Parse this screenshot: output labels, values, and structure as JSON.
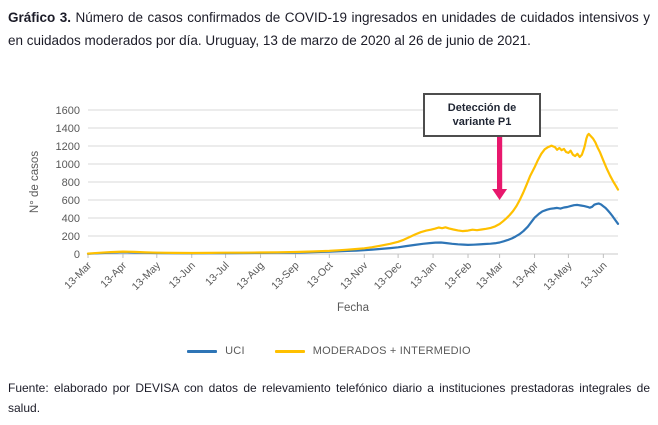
{
  "title": {
    "label": "Gráfico 3.",
    "text": "Número de casos confirmados de COVID-19 ingresados en unidades de cuidados intensivos y en cuidados moderados por día. Uruguay, 13 de marzo de 2020 al 26 de junio de 2021."
  },
  "source": "Fuente: elaborado por DEVISA con datos de relevamiento telefónico diario a instituciones prestadoras integrales de salud.",
  "colors": {
    "uci_blue": "#2E75B6",
    "moderados_gold": "#FFC000",
    "arrow_magenta": "#E8186D",
    "grid_gray": "#D9D9D9",
    "axis_text_gray": "#595959"
  },
  "chart_data": {
    "type": "line",
    "xlabel": "Fecha",
    "ylabel": "N° de casos",
    "x_unit": "days since 13-Mar-2020 (range ends 26-Jun-2021)",
    "xlim": [
      0,
      470
    ],
    "ylim": [
      0,
      1600
    ],
    "grid": "horizontal",
    "legend_position": "bottom",
    "y_ticks": [
      0,
      200,
      400,
      600,
      800,
      1000,
      1200,
      1400,
      1600
    ],
    "x_ticks": [
      {
        "day": 0,
        "label": "13-Mar"
      },
      {
        "day": 31,
        "label": "13-Apr"
      },
      {
        "day": 61,
        "label": "13-May"
      },
      {
        "day": 92,
        "label": "13-Jun"
      },
      {
        "day": 122,
        "label": "13-Jul"
      },
      {
        "day": 153,
        "label": "13-Aug"
      },
      {
        "day": 184,
        "label": "13-Sep"
      },
      {
        "day": 214,
        "label": "13-Oct"
      },
      {
        "day": 245,
        "label": "13-Nov"
      },
      {
        "day": 275,
        "label": "13-Dec"
      },
      {
        "day": 306,
        "label": "13-Jan"
      },
      {
        "day": 337,
        "label": "13-Feb"
      },
      {
        "day": 365,
        "label": "13-Mar"
      },
      {
        "day": 396,
        "label": "13-Apr"
      },
      {
        "day": 426,
        "label": "13-May"
      },
      {
        "day": 457,
        "label": "13-Jun"
      }
    ],
    "annotation": {
      "text": "Detección de variante P1",
      "x_day": 365,
      "arrow_from_value": 1300,
      "arrow_to_value": 600,
      "color": "#E8186D"
    },
    "series": [
      {
        "name": "UCI",
        "color": "#2E75B6",
        "points": [
          [
            0,
            2
          ],
          [
            10,
            9
          ],
          [
            20,
            16
          ],
          [
            31,
            21
          ],
          [
            41,
            17
          ],
          [
            51,
            13
          ],
          [
            61,
            11
          ],
          [
            76,
            9
          ],
          [
            92,
            8
          ],
          [
            107,
            9
          ],
          [
            122,
            10
          ],
          [
            138,
            11
          ],
          [
            153,
            12
          ],
          [
            168,
            14
          ],
          [
            184,
            16
          ],
          [
            199,
            20
          ],
          [
            214,
            26
          ],
          [
            222,
            30
          ],
          [
            230,
            34
          ],
          [
            238,
            38
          ],
          [
            245,
            42
          ],
          [
            252,
            49
          ],
          [
            260,
            57
          ],
          [
            268,
            66
          ],
          [
            275,
            75
          ],
          [
            282,
            88
          ],
          [
            290,
            101
          ],
          [
            297,
            113
          ],
          [
            303,
            121
          ],
          [
            308,
            127
          ],
          [
            313,
            128
          ],
          [
            318,
            121
          ],
          [
            323,
            113
          ],
          [
            328,
            108
          ],
          [
            333,
            104
          ],
          [
            337,
            101
          ],
          [
            342,
            103
          ],
          [
            347,
            107
          ],
          [
            352,
            111
          ],
          [
            357,
            115
          ],
          [
            362,
            121
          ],
          [
            365,
            128
          ],
          [
            369,
            142
          ],
          [
            372,
            155
          ],
          [
            376,
            173
          ],
          [
            379,
            193
          ],
          [
            383,
            223
          ],
          [
            386,
            253
          ],
          [
            390,
            303
          ],
          [
            393,
            353
          ],
          [
            396,
            403
          ],
          [
            400,
            448
          ],
          [
            403,
            473
          ],
          [
            407,
            492
          ],
          [
            410,
            502
          ],
          [
            413,
            507
          ],
          [
            416,
            512
          ],
          [
            419,
            505
          ],
          [
            422,
            517
          ],
          [
            425,
            522
          ],
          [
            428,
            532
          ],
          [
            431,
            542
          ],
          [
            434,
            546
          ],
          [
            437,
            539
          ],
          [
            440,
            532
          ],
          [
            443,
            523
          ],
          [
            445,
            515
          ],
          [
            447,
            525
          ],
          [
            449,
            548
          ],
          [
            451,
            557
          ],
          [
            453,
            561
          ],
          [
            455,
            550
          ],
          [
            457,
            531
          ],
          [
            459,
            511
          ],
          [
            461,
            483
          ],
          [
            463,
            455
          ],
          [
            465,
            422
          ],
          [
            467,
            388
          ],
          [
            470,
            336
          ]
        ]
      },
      {
        "name": "MODERADOS + INTERMEDIO",
        "color": "#FFC000",
        "points": [
          [
            0,
            4
          ],
          [
            10,
            13
          ],
          [
            20,
            21
          ],
          [
            31,
            27
          ],
          [
            41,
            23
          ],
          [
            51,
            18
          ],
          [
            61,
            15
          ],
          [
            76,
            12
          ],
          [
            92,
            11
          ],
          [
            107,
            12
          ],
          [
            122,
            14
          ],
          [
            138,
            15
          ],
          [
            153,
            17
          ],
          [
            168,
            19
          ],
          [
            184,
            22
          ],
          [
            199,
            28
          ],
          [
            214,
            34
          ],
          [
            222,
            41
          ],
          [
            230,
            48
          ],
          [
            238,
            56
          ],
          [
            245,
            63
          ],
          [
            252,
            76
          ],
          [
            260,
            93
          ],
          [
            268,
            113
          ],
          [
            275,
            135
          ],
          [
            280,
            158
          ],
          [
            285,
            188
          ],
          [
            290,
            217
          ],
          [
            295,
            242
          ],
          [
            300,
            260
          ],
          [
            304,
            270
          ],
          [
            308,
            282
          ],
          [
            311,
            294
          ],
          [
            314,
            287
          ],
          [
            317,
            297
          ],
          [
            320,
            284
          ],
          [
            324,
            272
          ],
          [
            328,
            262
          ],
          [
            332,
            254
          ],
          [
            337,
            260
          ],
          [
            341,
            270
          ],
          [
            345,
            264
          ],
          [
            349,
            272
          ],
          [
            353,
            280
          ],
          [
            357,
            290
          ],
          [
            361,
            307
          ],
          [
            365,
            333
          ],
          [
            368,
            363
          ],
          [
            371,
            397
          ],
          [
            374,
            433
          ],
          [
            377,
            478
          ],
          [
            380,
            533
          ],
          [
            383,
            603
          ],
          [
            386,
            683
          ],
          [
            389,
            773
          ],
          [
            392,
            863
          ],
          [
            396,
            963
          ],
          [
            399,
            1043
          ],
          [
            402,
            1113
          ],
          [
            405,
            1163
          ],
          [
            408,
            1188
          ],
          [
            411,
            1203
          ],
          [
            414,
            1188
          ],
          [
            416,
            1158
          ],
          [
            418,
            1178
          ],
          [
            420,
            1153
          ],
          [
            422,
            1168
          ],
          [
            424,
            1133
          ],
          [
            426,
            1123
          ],
          [
            428,
            1148
          ],
          [
            430,
            1103
          ],
          [
            432,
            1088
          ],
          [
            434,
            1113
          ],
          [
            436,
            1078
          ],
          [
            438,
            1103
          ],
          [
            440,
            1178
          ],
          [
            441,
            1228
          ],
          [
            442,
            1283
          ],
          [
            443,
            1320
          ],
          [
            444,
            1335
          ],
          [
            446,
            1308
          ],
          [
            448,
            1280
          ],
          [
            450,
            1240
          ],
          [
            452,
            1180
          ],
          [
            454,
            1130
          ],
          [
            457,
            1040
          ],
          [
            460,
            950
          ],
          [
            463,
            870
          ],
          [
            466,
            800
          ],
          [
            468,
            760
          ],
          [
            470,
            715
          ]
        ]
      }
    ]
  }
}
